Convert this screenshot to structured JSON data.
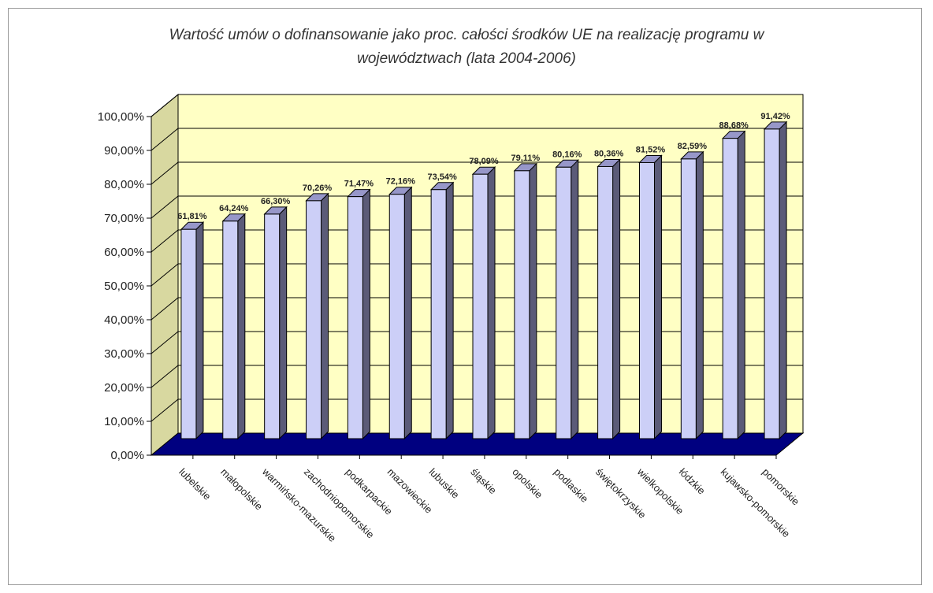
{
  "chart_data": {
    "type": "bar",
    "title_line1": "Wartość umów o dofinansowanie jako proc. całości środków UE na realizację programu w",
    "title_line2": "województwach (lata 2004-2006)",
    "categories": [
      "lubelskie",
      "małopolskie",
      "warmińsko-mazurskie",
      "zachodniopomorskie",
      "podkarpackie",
      "mazowieckie",
      "lubuskie",
      "śląskie",
      "opolskie",
      "podlaskie",
      "świętokrzyskie",
      "wielkopolskie",
      "łódzkie",
      "kujawsko-pomorskie",
      "pomorskie"
    ],
    "values": [
      61.81,
      64.24,
      66.3,
      70.26,
      71.47,
      72.16,
      73.54,
      78.09,
      79.11,
      80.16,
      80.36,
      81.52,
      82.59,
      88.68,
      91.42
    ],
    "labels": [
      "61,81%",
      "64,24%",
      "66,30%",
      "70,26%",
      "71,47%",
      "72,16%",
      "73,54%",
      "78,09%",
      "79,11%",
      "80,16%",
      "80,36%",
      "81,52%",
      "82,59%",
      "88,68%",
      "91,42%"
    ],
    "y_ticks": [
      "0,00%",
      "10,00%",
      "20,00%",
      "30,00%",
      "40,00%",
      "50,00%",
      "60,00%",
      "70,00%",
      "80,00%",
      "90,00%",
      "100,00%"
    ],
    "ylim": [
      0,
      100
    ],
    "grid": true,
    "colors": {
      "bar_front": "#cccff7",
      "bar_side": "#5b5b78",
      "bar_top": "#9797c9",
      "wall": "#ffffc4",
      "side_wall": "#d8d8a0",
      "floor": "#000080"
    }
  }
}
